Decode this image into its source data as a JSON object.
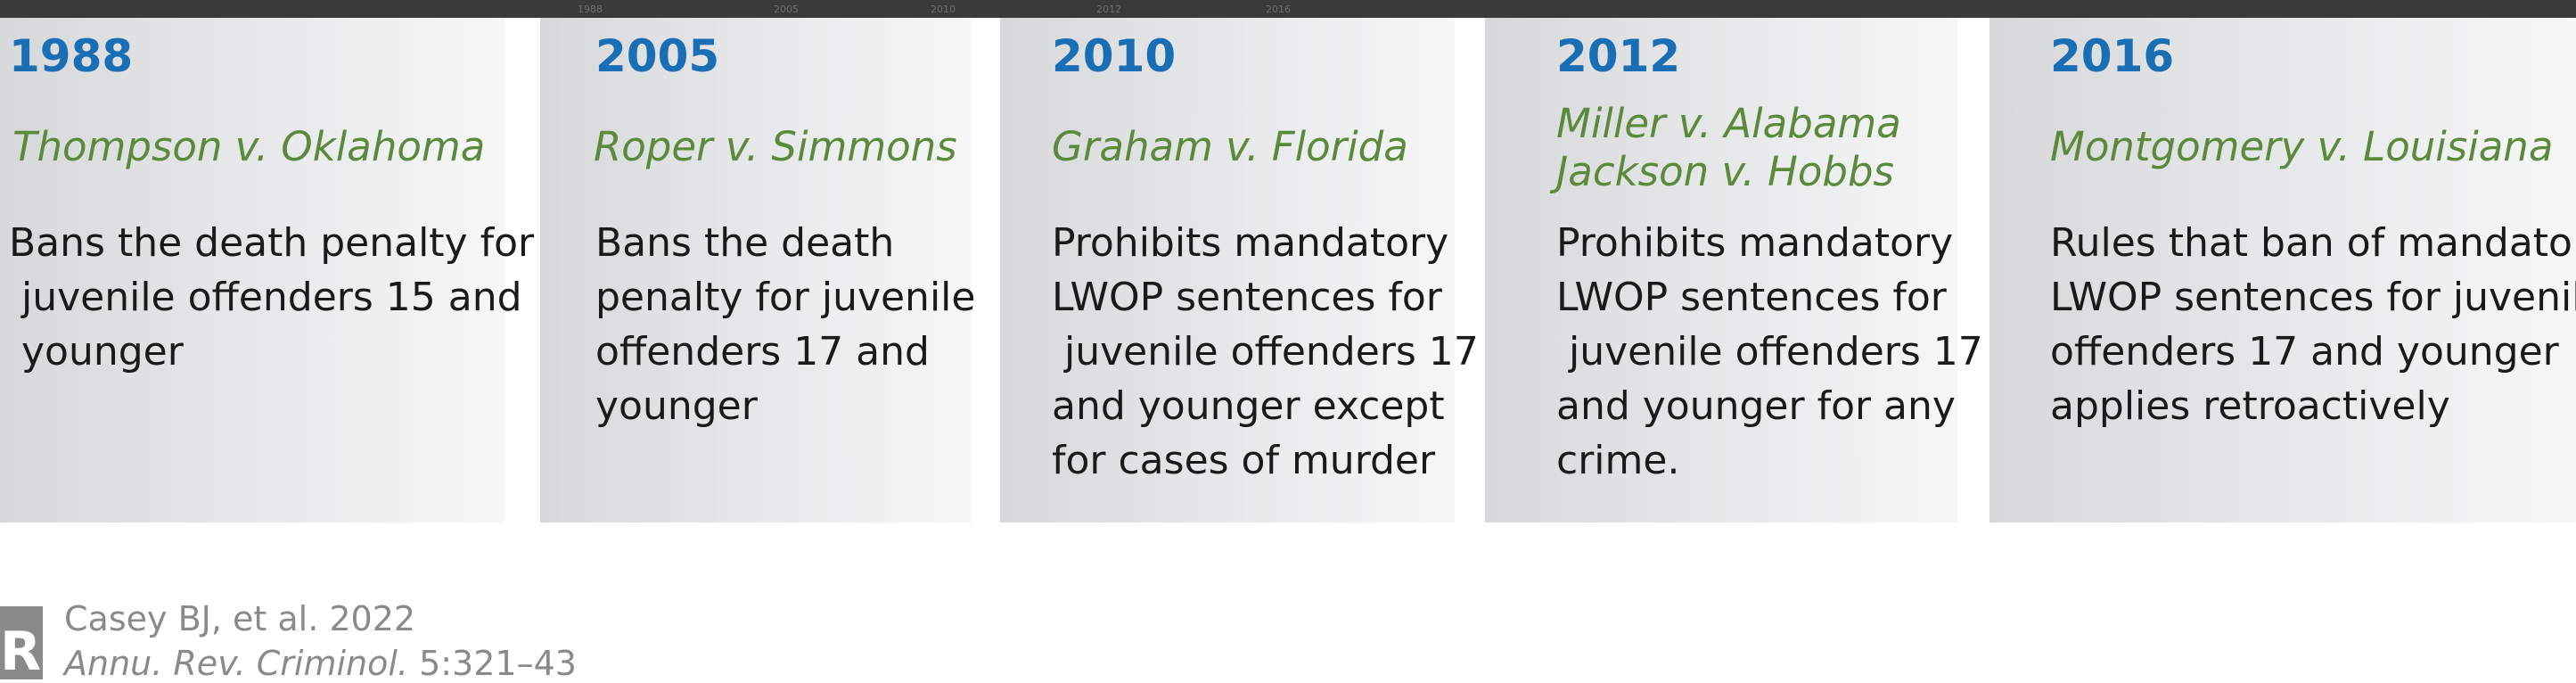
{
  "top_ticks": [
    "1988",
    "2005",
    "2010",
    "2012",
    "2016"
  ],
  "cases": [
    {
      "year": "1988",
      "case_lines": [
        "Thompson v. Oklahoma"
      ],
      "desc_lines": [
        "Bans the death penalty for",
        " juvenile offenders 15 and",
        " younger"
      ]
    },
    {
      "year": "2005",
      "case_lines": [
        "Roper v. Simmons"
      ],
      "desc_lines": [
        "Bans the death",
        "penalty for juvenile",
        "offenders 17 and",
        "younger"
      ]
    },
    {
      "year": "2010",
      "case_lines": [
        "Graham v. Florida"
      ],
      "desc_lines": [
        "Prohibits mandatory",
        "LWOP sentences for",
        " juvenile offenders 17",
        "and younger except",
        "for cases of murder"
      ]
    },
    {
      "year": "2012",
      "case_lines": [
        "Miller v. Alabama",
        "Jackson v. Hobbs"
      ],
      "desc_lines": [
        "Prohibits mandatory",
        "LWOP sentences for",
        " juvenile offenders 17",
        "and younger for any",
        "crime."
      ]
    },
    {
      "year": "2016",
      "case_lines": [
        "Montgomery v. Louisiana"
      ],
      "desc_lines": [
        "Rules that ban of mandatory",
        "LWOP sentences for juvenile",
        "offenders 17 and younger",
        "applies retroactively"
      ]
    }
  ],
  "citation": {
    "logo_letter": "R",
    "authors": "Casey BJ, et al. 2022",
    "journal": "Annu. Rev. Criminol.",
    "pages": " 5:321–43"
  }
}
